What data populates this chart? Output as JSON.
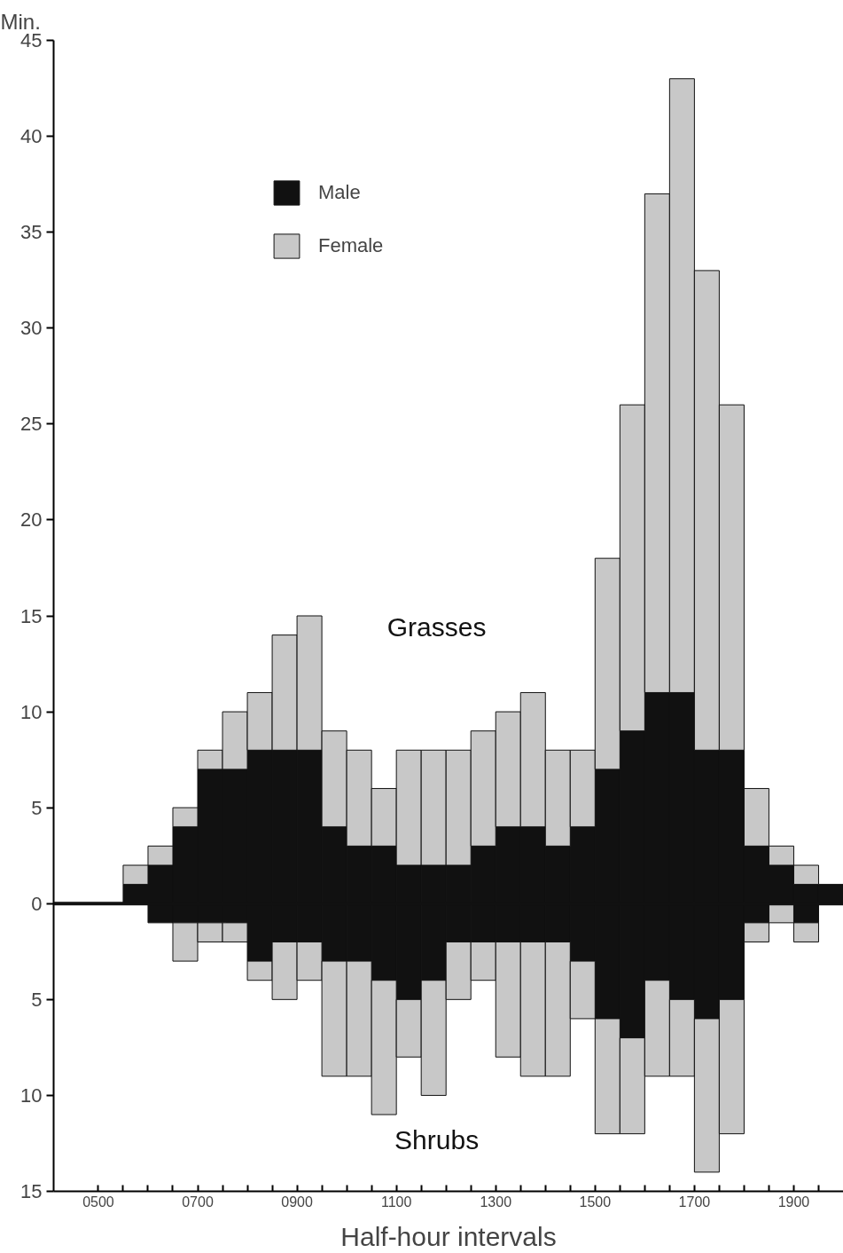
{
  "chart_data": {
    "type": "bar",
    "stacked": true,
    "ylabel": "Min.",
    "xlabel": "Half-hour intervals",
    "annotations": [
      "Grasses",
      "Shrubs"
    ],
    "x": [
      575,
      625,
      675,
      725,
      775,
      825,
      875,
      925,
      975,
      1025,
      1075,
      1125,
      1175,
      1225,
      1275,
      1325,
      1375,
      1425,
      1475,
      1525,
      1575,
      1625,
      1675,
      1725,
      1775,
      1825,
      1875,
      1925,
      1975
    ],
    "series": [
      {
        "name": "Male",
        "color": "#111111",
        "values": [
          1,
          2,
          4,
          7,
          7,
          8,
          8,
          8,
          4,
          3,
          3,
          2,
          2,
          2,
          3,
          4,
          4,
          3,
          4,
          7,
          9,
          11,
          11,
          8,
          8,
          3,
          2,
          1,
          1
        ]
      },
      {
        "name": "Female",
        "color": "#c8c8c8",
        "values": [
          1,
          1,
          1,
          1,
          3,
          3,
          6,
          7,
          5,
          5,
          3,
          6,
          6,
          6,
          6,
          6,
          7,
          5,
          4,
          11,
          17,
          26,
          32,
          25,
          18,
          3,
          1,
          1,
          0
        ]
      },
      {
        "color": "#111111",
        "values": [
          0,
          -1,
          -1,
          -1,
          -1,
          -3,
          -2,
          -2,
          -3,
          -3,
          -4,
          -5,
          -4,
          -2,
          -2,
          -2,
          -2,
          -2,
          -3,
          -6,
          -7,
          -4,
          -5,
          -6,
          -5,
          -1,
          0,
          -1,
          0
        ]
      },
      {
        "color": "#c8c8c8",
        "values": [
          0,
          0,
          -2,
          -1,
          -1,
          -1,
          -3,
          -2,
          -6,
          -6,
          -7,
          -3,
          -6,
          -3,
          -2,
          -6,
          -7,
          -7,
          -3,
          -6,
          -5,
          -5,
          -4,
          -8,
          -7,
          -1,
          -1,
          -1,
          0
        ]
      }
    ],
    "xlim": [
      410,
      2000
    ],
    "xticks": [
      {
        "value": 500,
        "label": "0500"
      },
      {
        "value": 550,
        "label": null
      },
      {
        "value": 600,
        "label": null
      },
      {
        "value": 650,
        "label": null
      },
      {
        "value": 700,
        "label": "0700"
      },
      {
        "value": 750,
        "label": null
      },
      {
        "value": 800,
        "label": null
      },
      {
        "value": 850,
        "label": null
      },
      {
        "value": 900,
        "label": "0900"
      },
      {
        "value": 950,
        "label": null
      },
      {
        "value": 1000,
        "label": null
      },
      {
        "value": 1050,
        "label": null
      },
      {
        "value": 1100,
        "label": "1100"
      },
      {
        "value": 1150,
        "label": null
      },
      {
        "value": 1200,
        "label": null
      },
      {
        "value": 1250,
        "label": null
      },
      {
        "value": 1300,
        "label": "1300"
      },
      {
        "value": 1350,
        "label": null
      },
      {
        "value": 1400,
        "label": null
      },
      {
        "value": 1450,
        "label": null
      },
      {
        "value": 1500,
        "label": "1500"
      },
      {
        "value": 1550,
        "label": null
      },
      {
        "value": 1600,
        "label": null
      },
      {
        "value": 1650,
        "label": null
      },
      {
        "value": 1700,
        "label": "1700"
      },
      {
        "value": 1750,
        "label": null
      },
      {
        "value": 1800,
        "label": null
      },
      {
        "value": 1850,
        "label": null
      },
      {
        "value": 1900,
        "label": "1900"
      },
      {
        "value": 1950,
        "label": null
      }
    ],
    "ylim": [
      -15,
      45
    ],
    "yticks": [
      {
        "value": -15,
        "label": "15"
      },
      {
        "value": -10,
        "label": "10"
      },
      {
        "value": -5,
        "label": "5"
      },
      0,
      5,
      10,
      15,
      20,
      25,
      30,
      35,
      40,
      45
    ],
    "ref_lines": [
      {
        "axis": "y",
        "value": 0,
        "color": "#111111"
      }
    ],
    "legend": "top left",
    "grid": false
  }
}
